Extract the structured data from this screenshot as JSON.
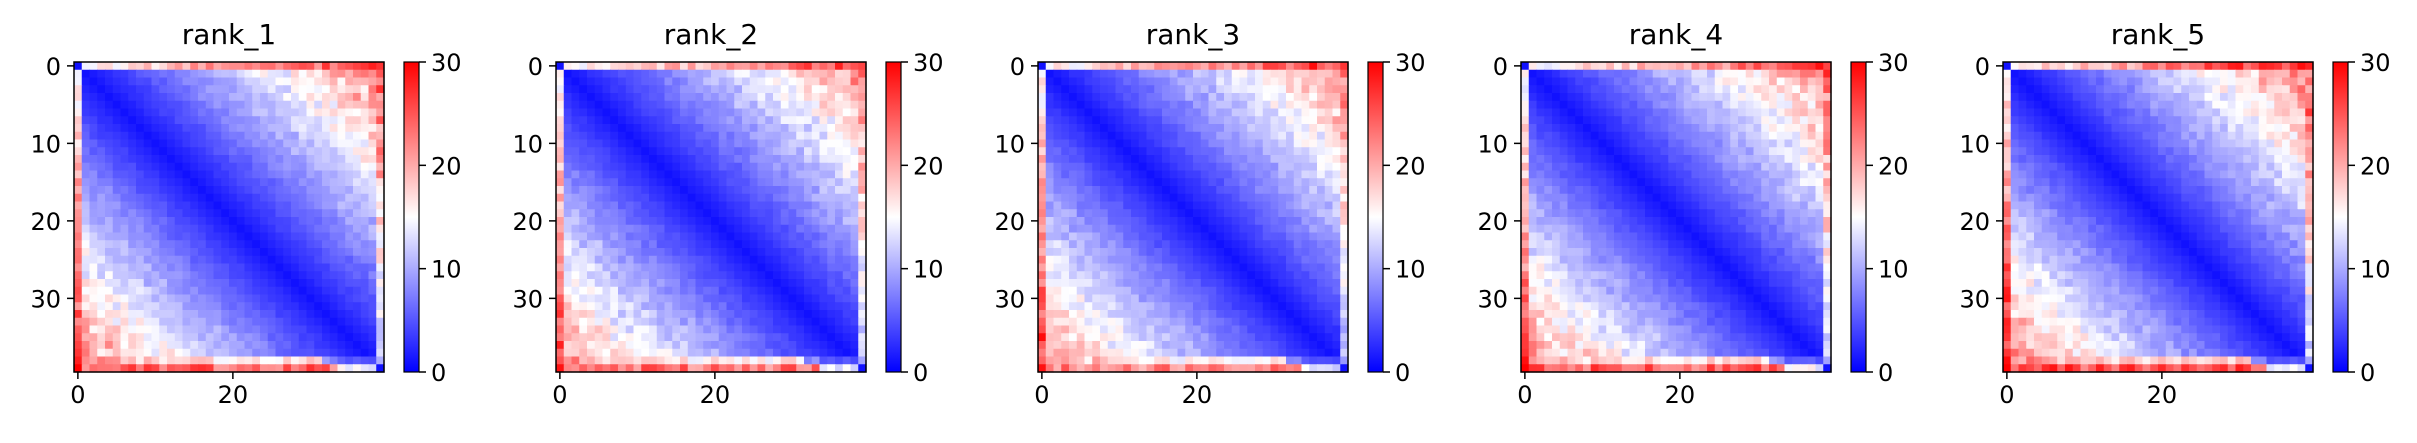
{
  "figure": {
    "panel_titles": [
      "rank_1",
      "rank_2",
      "rank_3",
      "rank_4",
      "rank_5"
    ]
  },
  "chart_data": [
    {
      "type": "heatmap",
      "title": "rank_1",
      "matrix_size": 40,
      "x_ticks": [
        0,
        20
      ],
      "y_ticks": [
        0,
        10,
        20,
        30
      ],
      "xlim": [
        -0.5,
        39.5
      ],
      "ylim": [
        39.5,
        -0.5
      ],
      "colorbar": {
        "ticks": [
          0,
          10,
          20,
          30
        ],
        "vmin": 0,
        "vmax": 30,
        "colormap": "bwr"
      },
      "description_values": {
        "diagonal": 1,
        "near_diagonal_slope": 0.42,
        "corner_top_right": 27,
        "corner_bottom_left": 30,
        "bottom_row_mean": 24
      }
    },
    {
      "type": "heatmap",
      "title": "rank_2",
      "matrix_size": 40,
      "x_ticks": [
        0,
        20
      ],
      "y_ticks": [
        0,
        10,
        20,
        30
      ],
      "xlim": [
        -0.5,
        39.5
      ],
      "ylim": [
        39.5,
        -0.5
      ],
      "colorbar": {
        "ticks": [
          0,
          10,
          20,
          30
        ],
        "vmin": 0,
        "vmax": 30,
        "colormap": "bwr"
      },
      "description_values": {
        "diagonal": 1,
        "near_diagonal_slope": 0.4,
        "corner_top_right": 26,
        "corner_bottom_left": 29,
        "bottom_row_mean": 23
      }
    },
    {
      "type": "heatmap",
      "title": "rank_3",
      "matrix_size": 40,
      "x_ticks": [
        0,
        20
      ],
      "y_ticks": [
        0,
        10,
        20,
        30
      ],
      "xlim": [
        -0.5,
        39.5
      ],
      "ylim": [
        39.5,
        -0.5
      ],
      "colorbar": {
        "ticks": [
          0,
          10,
          20,
          30
        ],
        "vmin": 0,
        "vmax": 30,
        "colormap": "bwr"
      },
      "description_values": {
        "diagonal": 1,
        "near_diagonal_slope": 0.41,
        "corner_top_right": 27,
        "corner_bottom_left": 29,
        "bottom_row_mean": 22
      }
    },
    {
      "type": "heatmap",
      "title": "rank_4",
      "matrix_size": 40,
      "x_ticks": [
        0,
        20
      ],
      "y_ticks": [
        0,
        10,
        20,
        30
      ],
      "xlim": [
        -0.5,
        39.5
      ],
      "ylim": [
        39.5,
        -0.5
      ],
      "colorbar": {
        "ticks": [
          0,
          10,
          20,
          30
        ],
        "vmin": 0,
        "vmax": 30,
        "colormap": "bwr"
      },
      "description_values": {
        "diagonal": 1,
        "near_diagonal_slope": 0.42,
        "corner_top_right": 26,
        "corner_bottom_left": 30,
        "bottom_row_mean": 24
      }
    },
    {
      "type": "heatmap",
      "title": "rank_5",
      "matrix_size": 40,
      "x_ticks": [
        0,
        20
      ],
      "y_ticks": [
        0,
        10,
        20,
        30
      ],
      "xlim": [
        -0.5,
        39.5
      ],
      "ylim": [
        39.5,
        -0.5
      ],
      "colorbar": {
        "ticks": [
          0,
          10,
          20,
          30
        ],
        "vmin": 0,
        "vmax": 30,
        "colormap": "bwr"
      },
      "description_values": {
        "diagonal": 1,
        "near_diagonal_slope": 0.43,
        "corner_top_right": 28,
        "corner_bottom_left": 30,
        "bottom_row_mean": 25
      }
    }
  ],
  "colors": {
    "low": "#0000ff",
    "mid": "#ffffff",
    "high": "#ff0000",
    "axis": "#000000"
  }
}
